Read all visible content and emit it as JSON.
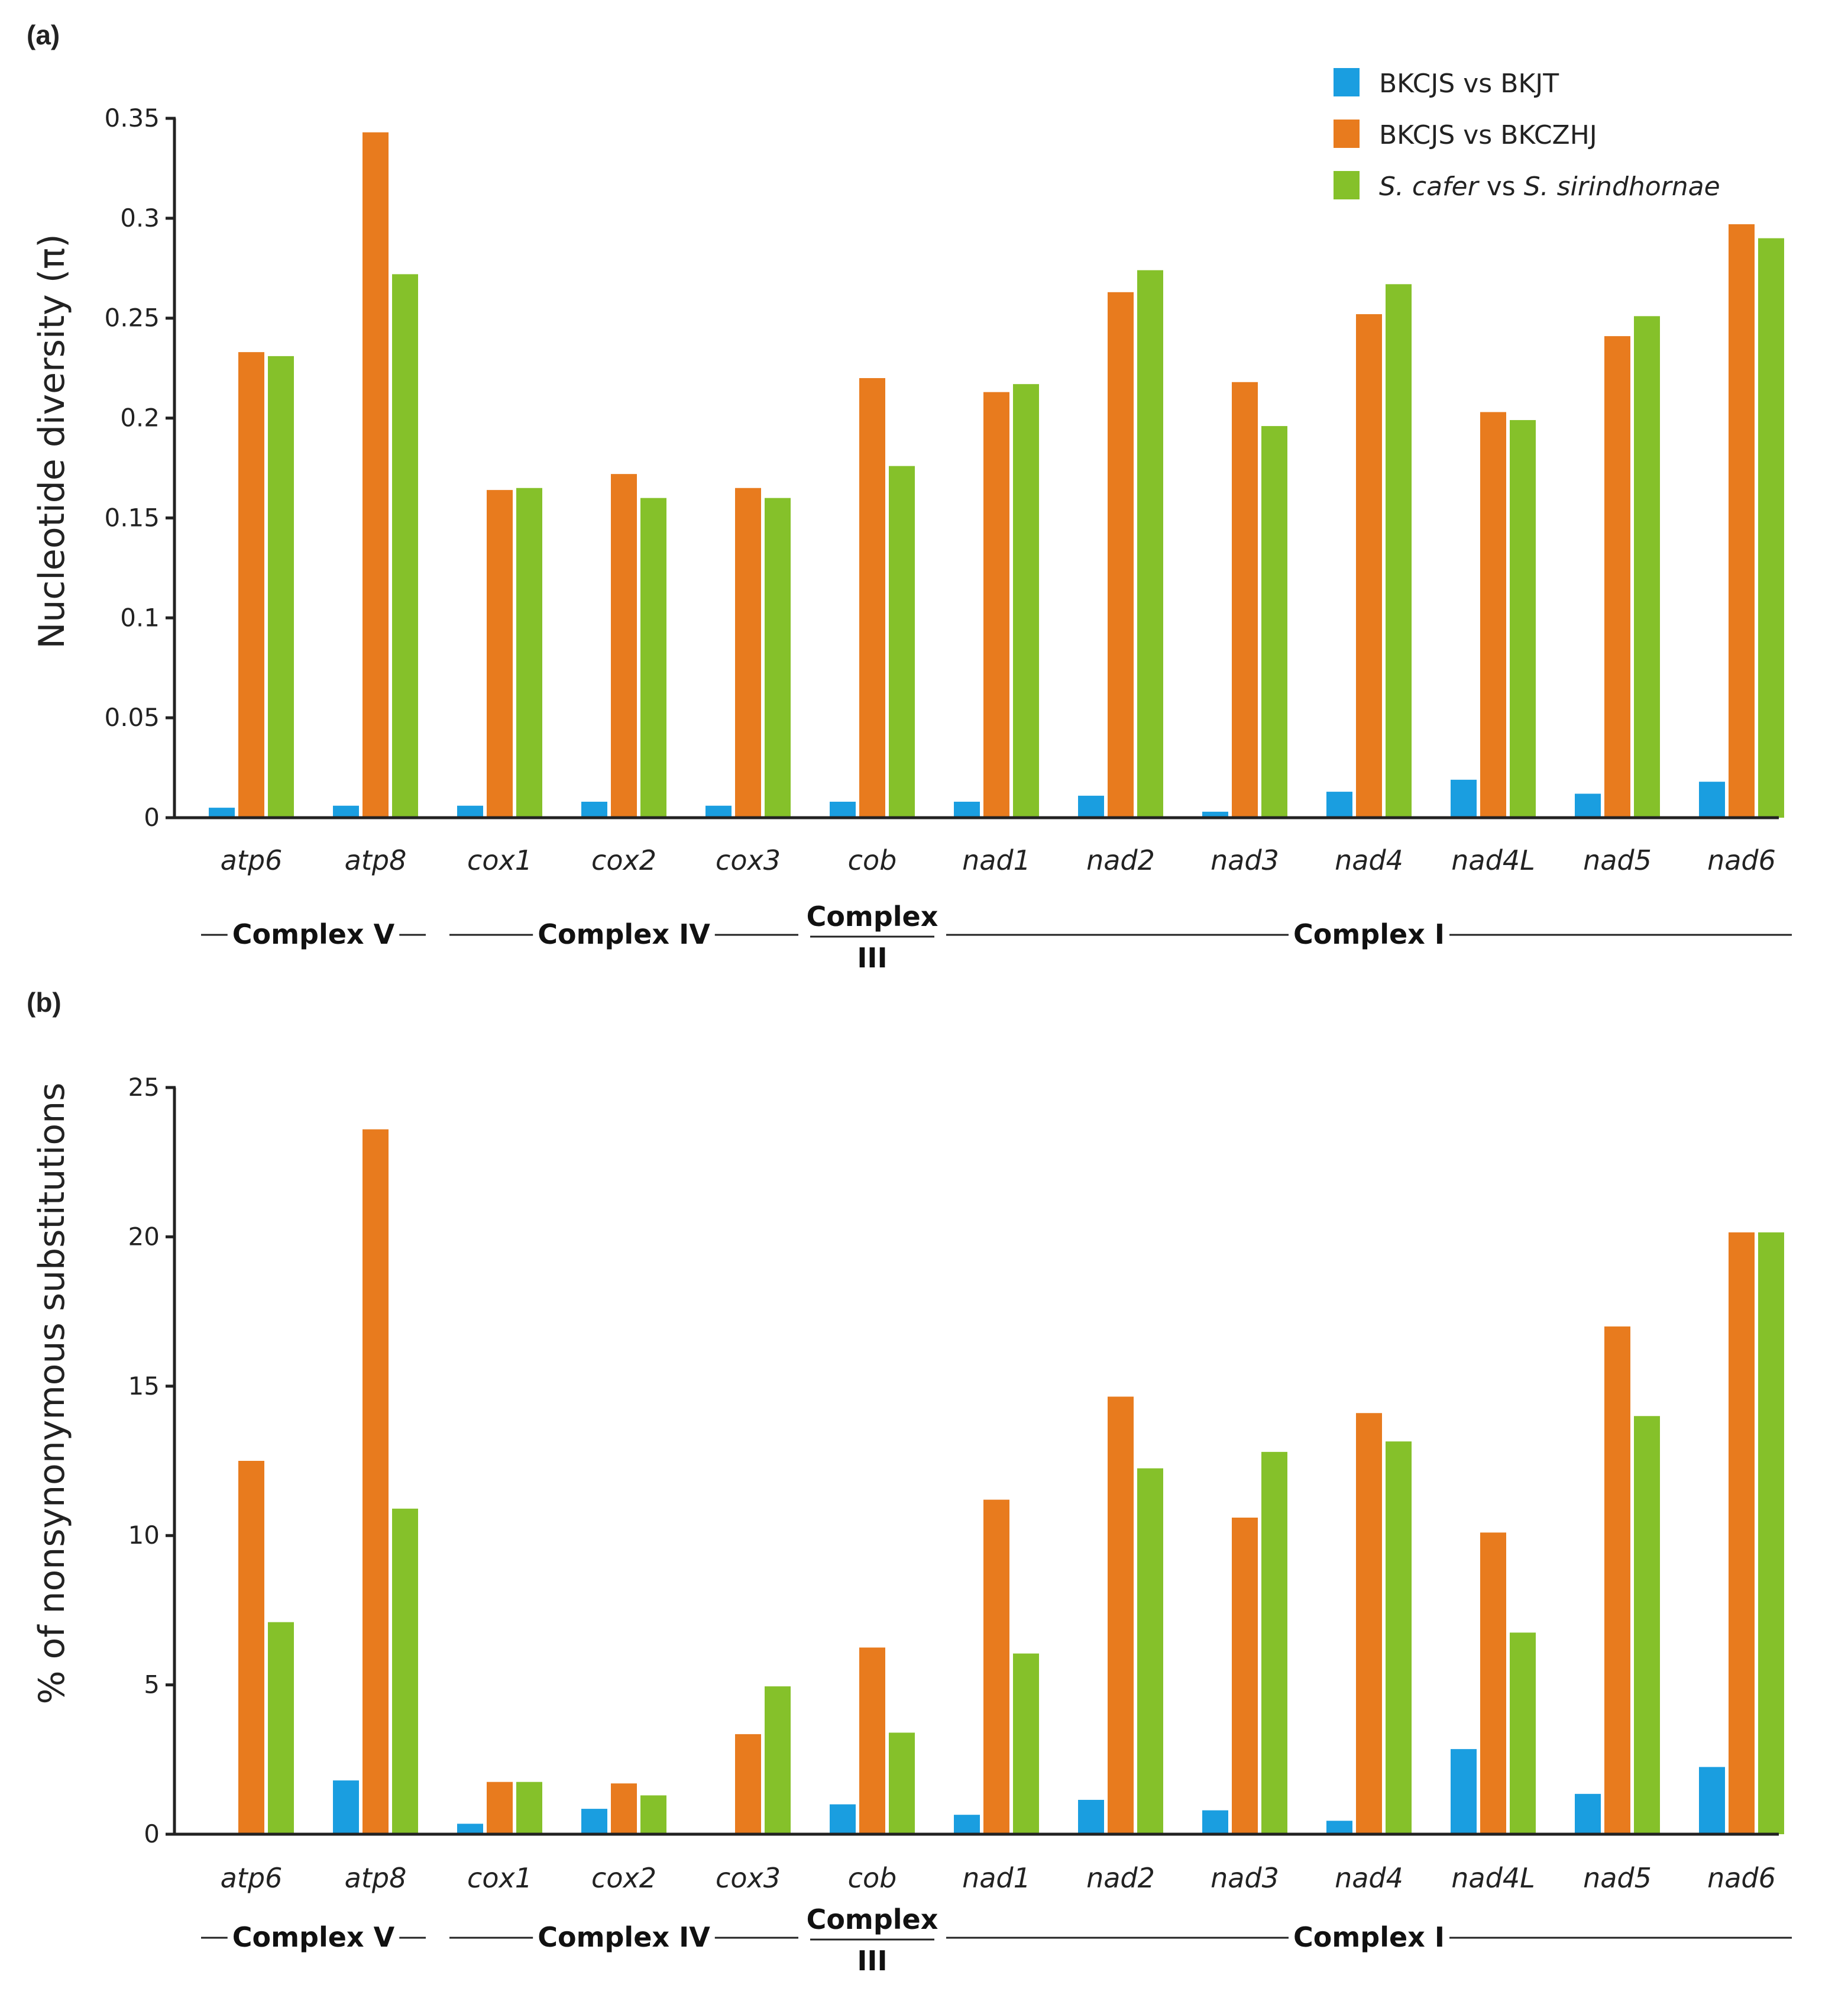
{
  "colors": {
    "blue": "#1a9ee0",
    "orange": "#e87b1e",
    "green": "#85c12a"
  },
  "legend": {
    "items": [
      {
        "label": "BKCJS vs BKJT",
        "color": "#1a9ee0"
      },
      {
        "label": "BKCJS vs BKCZHJ",
        "color": "#e87b1e"
      },
      {
        "species_a": "S. cafer",
        "connector": "vs",
        "species_b": "S. sirindhornae",
        "color": "#85c12a"
      }
    ]
  },
  "complexes": [
    {
      "label": "Complex V",
      "first": 0,
      "last": 1
    },
    {
      "label": "Complex IV",
      "first": 2,
      "last": 4
    },
    {
      "label_line1": "Complex",
      "label_line2": "III",
      "first": 5,
      "last": 5
    },
    {
      "label": "Complex I",
      "first": 6,
      "last": 12
    }
  ],
  "chart_data": [
    {
      "panel": "(a)",
      "type": "bar",
      "ylabel": "Nucleotide diversity (π)",
      "ylim": [
        0,
        0.35
      ],
      "yticks": [
        "0",
        "0.05",
        "0.1",
        "0.15",
        "0.2",
        "0.25",
        "0.3",
        "0.35"
      ],
      "ytick_values": [
        0,
        0.05,
        0.1,
        0.15,
        0.2,
        0.25,
        0.3,
        0.35
      ],
      "categories": [
        "atp6",
        "atp8",
        "cox1",
        "cox2",
        "cox3",
        "cob",
        "nad1",
        "nad2",
        "nad3",
        "nad4",
        "nad4L",
        "nad5",
        "nad6"
      ],
      "series": [
        {
          "name": "BKCJS vs BKJT",
          "values": [
            0.005,
            0.006,
            0.006,
            0.008,
            0.006,
            0.008,
            0.008,
            0.011,
            0.003,
            0.013,
            0.019,
            0.012,
            0.018
          ]
        },
        {
          "name": "BKCJS vs BKCZHJ",
          "values": [
            0.233,
            0.343,
            0.164,
            0.172,
            0.165,
            0.22,
            0.213,
            0.263,
            0.218,
            0.252,
            0.203,
            0.241,
            0.297
          ]
        },
        {
          "name": "S. cafer vs S. sirindhornae",
          "values": [
            0.231,
            0.272,
            0.165,
            0.16,
            0.16,
            0.176,
            0.217,
            0.274,
            0.196,
            0.267,
            0.199,
            0.251,
            0.29
          ]
        }
      ]
    },
    {
      "panel": "(b)",
      "type": "bar",
      "ylabel": "% of nonsynonymous substitutions",
      "ylim": [
        0,
        25
      ],
      "yticks": [
        "0",
        "5",
        "10",
        "15",
        "20",
        "25"
      ],
      "ytick_values": [
        0,
        5,
        10,
        15,
        20,
        25
      ],
      "categories": [
        "atp6",
        "atp8",
        "cox1",
        "cox2",
        "cox3",
        "cob",
        "nad1",
        "nad2",
        "nad3",
        "nad4",
        "nad4L",
        "nad5",
        "nad6"
      ],
      "series": [
        {
          "name": "BKCJS vs BKJT",
          "values": [
            0,
            1.8,
            0.35,
            0.85,
            0,
            1.0,
            0.65,
            1.15,
            0.8,
            0.45,
            2.85,
            1.35,
            2.25
          ]
        },
        {
          "name": "BKCJS vs BKCZHJ",
          "values": [
            12.5,
            23.6,
            1.75,
            1.7,
            3.35,
            6.25,
            11.2,
            14.65,
            10.6,
            14.1,
            10.1,
            17.0,
            20.15
          ]
        },
        {
          "name": "S. cafer vs S. sirindhornae",
          "values": [
            7.1,
            10.9,
            1.75,
            1.3,
            4.95,
            3.4,
            6.05,
            12.25,
            12.8,
            13.15,
            6.75,
            14.0,
            20.15
          ]
        }
      ]
    }
  ]
}
